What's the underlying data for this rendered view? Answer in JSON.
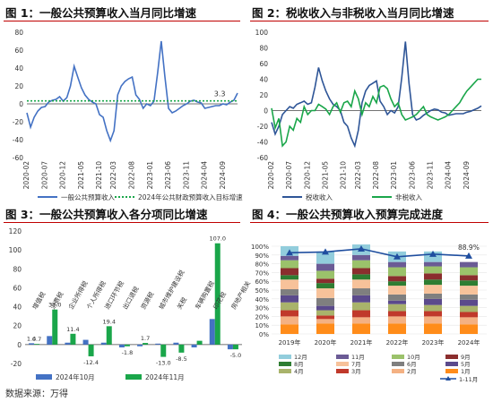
{
  "source": "数据来源：万得",
  "colors": {
    "blue": "#4472c4",
    "green": "#1aa64a",
    "darkblue": "#2e5597",
    "title_line": "#c00000"
  },
  "chart_data": [
    {
      "id": "c1",
      "type": "line",
      "title": "图 1：一般公共预算收入当月同比增速",
      "ylim": [
        -60,
        80
      ],
      "yticks": [
        -60,
        -40,
        -20,
        0,
        20,
        40,
        60,
        80
      ],
      "n_points": 59,
      "x_ticks": [
        {
          "i": 0,
          "label": "2020-02"
        },
        {
          "i": 5,
          "label": "2020-07"
        },
        {
          "i": 10,
          "label": "2020-12"
        },
        {
          "i": 15,
          "label": "2021-05"
        },
        {
          "i": 20,
          "label": "2021-10"
        },
        {
          "i": 24,
          "label": "2022-03"
        },
        {
          "i": 29,
          "label": "2022-08"
        },
        {
          "i": 34,
          "label": "2023-01"
        },
        {
          "i": 39,
          "label": "2023-06"
        },
        {
          "i": 44,
          "label": "2023-11"
        },
        {
          "i": 49,
          "label": "2024-04"
        },
        {
          "i": 54,
          "label": "2024-09"
        }
      ],
      "annotation": {
        "i": 53,
        "value": 3.3,
        "label": "3.3"
      },
      "series": [
        {
          "name": "一般公共预算收入",
          "color": "#4472c4",
          "style": "solid",
          "values": [
            -10,
            -26,
            -15,
            -8,
            -4,
            -3,
            2,
            4,
            5,
            8,
            3,
            7,
            20,
            42,
            30,
            18,
            10,
            5,
            2,
            0,
            -12,
            -15,
            -30,
            -41,
            -30,
            10,
            20,
            25,
            28,
            30,
            10,
            5,
            -5,
            0,
            -2,
            3,
            35,
            70,
            30,
            -5,
            -10,
            -8,
            -5,
            -2,
            0,
            3,
            4,
            2,
            1,
            -5,
            -4,
            -3,
            -2,
            -2,
            0,
            -1,
            2,
            4,
            12
          ]
        },
        {
          "name": "2024年公共财政预算收入目标增速",
          "color": "#1aa64a",
          "style": "dotted",
          "values": [
            3.3,
            3.3,
            3.3,
            3.3,
            3.3,
            3.3,
            3.3,
            3.3,
            3.3,
            3.3,
            3.3,
            3.3,
            3.3,
            3.3,
            3.3,
            3.3,
            3.3,
            3.3,
            3.3,
            3.3,
            3.3,
            3.3,
            3.3,
            3.3,
            3.3,
            3.3,
            3.3,
            3.3,
            3.3,
            3.3,
            3.3,
            3.3,
            3.3,
            3.3,
            3.3,
            3.3,
            3.3,
            3.3,
            3.3,
            3.3,
            3.3,
            3.3,
            3.3,
            3.3,
            3.3,
            3.3,
            3.3,
            3.3,
            3.3,
            3.3,
            3.3,
            3.3,
            3.3,
            3.3,
            3.3,
            3.3,
            3.3,
            3.3,
            3.3
          ]
        }
      ]
    },
    {
      "id": "c2",
      "type": "line",
      "title": "图 2：税收收入与非税收入当月同比增速",
      "ylim": [
        -60,
        100
      ],
      "yticks": [
        -60,
        -40,
        -20,
        0,
        20,
        40,
        60,
        80,
        100
      ],
      "n_points": 59,
      "x_ticks": [
        {
          "i": 0,
          "label": "2020-02"
        },
        {
          "i": 5,
          "label": "2020-07"
        },
        {
          "i": 10,
          "label": "2020-12"
        },
        {
          "i": 15,
          "label": "2021-05"
        },
        {
          "i": 20,
          "label": "2021-10"
        },
        {
          "i": 24,
          "label": "2022-03"
        },
        {
          "i": 29,
          "label": "2022-08"
        },
        {
          "i": 34,
          "label": "2023-01"
        },
        {
          "i": 39,
          "label": "2023-06"
        },
        {
          "i": 44,
          "label": "2023-11"
        },
        {
          "i": 49,
          "label": "2024-04"
        },
        {
          "i": 54,
          "label": "2024-09"
        }
      ],
      "series": [
        {
          "name": "税收收入",
          "color": "#2e5597",
          "style": "solid",
          "values": [
            -15,
            -30,
            -20,
            -5,
            0,
            5,
            3,
            8,
            10,
            12,
            8,
            10,
            30,
            55,
            38,
            25,
            15,
            8,
            5,
            0,
            -15,
            -20,
            -35,
            -45,
            -25,
            10,
            25,
            32,
            35,
            38,
            12,
            5,
            -5,
            0,
            -3,
            5,
            42,
            88,
            35,
            -5,
            -12,
            -10,
            -6,
            -3,
            0,
            2,
            1,
            -2,
            -3,
            -6,
            -5,
            -4,
            -4,
            -4,
            -2,
            -1,
            1,
            3,
            6
          ]
        },
        {
          "name": "非税收入",
          "color": "#1aa64a",
          "style": "solid",
          "values": [
            3,
            -22,
            -10,
            -45,
            -40,
            -20,
            -25,
            -10,
            -15,
            5,
            -5,
            0,
            0,
            8,
            5,
            2,
            -5,
            5,
            10,
            -2,
            10,
            12,
            5,
            25,
            15,
            -5,
            10,
            5,
            18,
            10,
            30,
            32,
            28,
            15,
            5,
            10,
            -5,
            -12,
            -10,
            -8,
            -5,
            0,
            5,
            -5,
            -8,
            -10,
            -12,
            -10,
            -8,
            -5,
            0,
            5,
            10,
            18,
            25,
            30,
            35,
            40,
            40
          ]
        }
      ]
    },
    {
      "id": "c3",
      "type": "bar",
      "title": "图 3：一般公共预算收入各分项同比增速",
      "ylim": [
        -20,
        120
      ],
      "yticks": [
        -20,
        0,
        20,
        40,
        60,
        80,
        100,
        120
      ],
      "categories": [
        "增值税",
        "消费税",
        "企业所得税",
        "个人所得税",
        "进口环节税",
        "出口退税",
        "资源税",
        "城市维护建设税",
        "关税",
        "车辆购置税",
        "印花税",
        "房地产相关"
      ],
      "series": [
        {
          "name": "2024年10月",
          "color": "#4472c4",
          "values": [
            1.4,
            9,
            2,
            5,
            2,
            -3,
            -1.8,
            1,
            2,
            -3,
            27,
            -5
          ]
        },
        {
          "name": "2024年11月",
          "color": "#1aa64a",
          "values": [
            0.7,
            37.0,
            11.4,
            -12.4,
            19.4,
            -1.8,
            1.7,
            -13.0,
            -8.5,
            4,
            107.0,
            -5.0
          ]
        }
      ],
      "data_labels": [
        {
          "series": 0,
          "i": 0,
          "text": "1.4"
        },
        {
          "series": 1,
          "i": 0,
          "text": "0.7"
        },
        {
          "series": 1,
          "i": 1,
          "text": "37.0"
        },
        {
          "series": 1,
          "i": 2,
          "text": "11.4"
        },
        {
          "series": 1,
          "i": 3,
          "text": "-12.4"
        },
        {
          "series": 1,
          "i": 4,
          "text": "19.4"
        },
        {
          "series": 1,
          "i": 5,
          "text": "-1.8"
        },
        {
          "series": 1,
          "i": 6,
          "text": "1.7"
        },
        {
          "series": 1,
          "i": 7,
          "text": "-13.0"
        },
        {
          "series": 1,
          "i": 8,
          "text": "-8.5"
        },
        {
          "series": 1,
          "i": 10,
          "text": "107.0"
        },
        {
          "series": 1,
          "i": 11,
          "text": "-5.0"
        }
      ]
    },
    {
      "id": "c4",
      "type": "bar",
      "stacked": true,
      "title": "图 4：一般公共预算收入预算完成进度",
      "ylim": [
        0,
        100
      ],
      "yticks": [
        "0%",
        "10%",
        "20%",
        "30%",
        "40%",
        "50%",
        "60%",
        "70%",
        "80%",
        "90%",
        "100%"
      ],
      "categories": [
        "2019年",
        "2020年",
        "2021年",
        "2022年",
        "2023年",
        "2024年"
      ],
      "months": [
        {
          "name": "1月",
          "color": "#ff8c1a"
        },
        {
          "name": "2月",
          "color": "#f4b183"
        },
        {
          "name": "3月",
          "color": "#c0392b"
        },
        {
          "name": "4月",
          "color": "#a9b36b"
        },
        {
          "name": "5月",
          "color": "#5b4a8c"
        },
        {
          "name": "6月",
          "color": "#7f7f7f"
        },
        {
          "name": "7月",
          "color": "#f7c29a"
        },
        {
          "name": "8月",
          "color": "#2e7d32"
        },
        {
          "name": "9月",
          "color": "#8b2e2e"
        },
        {
          "name": "10月",
          "color": "#9bc26b"
        },
        {
          "name": "11月",
          "color": "#6b5b95"
        },
        {
          "name": "12月",
          "color": "#92cddc"
        }
      ],
      "stacks": [
        [
          11,
          9,
          7,
          9,
          8,
          7,
          11,
          5,
          8,
          9,
          5,
          11
        ],
        [
          12,
          5,
          4,
          6,
          5,
          9,
          11,
          6,
          5,
          9,
          8,
          14
        ],
        [
          12,
          7,
          8,
          9,
          8,
          8,
          10,
          6,
          7,
          9,
          6,
          12
        ],
        [
          12,
          8,
          6,
          8,
          4,
          7,
          10,
          5,
          6,
          10,
          6,
          12
        ],
        [
          12,
          8,
          6,
          7,
          7,
          6,
          10,
          6,
          7,
          8,
          5,
          12
        ],
        [
          11,
          8,
          6,
          7,
          7,
          6,
          10,
          6,
          6,
          9,
          6,
          0
        ]
      ],
      "line": {
        "name": "1-11月",
        "color": "#1f4e9f",
        "values": [
          92.5,
          93.5,
          97,
          88,
          91,
          88.9
        ]
      },
      "line_label": "88.9%"
    }
  ]
}
